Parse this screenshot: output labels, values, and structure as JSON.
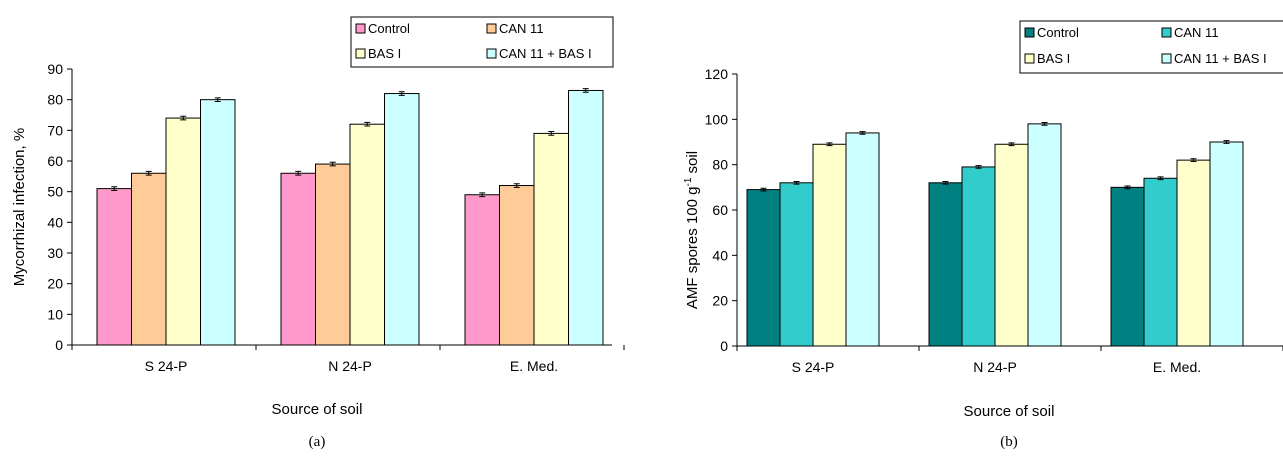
{
  "chart_data": [
    {
      "type": "bar",
      "title": "",
      "caption": "(a)",
      "xlabel": "Source of soil",
      "ylabel": "Mycorrhizal infection, %",
      "ylim": [
        0,
        90
      ],
      "yticks": [
        0,
        10,
        20,
        30,
        40,
        50,
        60,
        70,
        80,
        90
      ],
      "categories": [
        "S 24-P",
        "N 24-P",
        "E. Med."
      ],
      "error_bars": true,
      "legend_position": "top-right",
      "series": [
        {
          "name": "Control",
          "color": "#ff99cc",
          "values": [
            51,
            56,
            49
          ]
        },
        {
          "name": "CAN 11",
          "color": "#ffcc99",
          "values": [
            56,
            59,
            52
          ]
        },
        {
          "name": "BAS I",
          "color": "#ffffcc",
          "values": [
            74,
            72,
            69
          ]
        },
        {
          "name": "CAN 11 + BAS I",
          "color": "#ccffff",
          "values": [
            80,
            82,
            83
          ]
        }
      ]
    },
    {
      "type": "bar",
      "title": "",
      "caption": "(b)",
      "xlabel": "Source of soil",
      "ylabel": "AMF spores 100 g",
      "ylabel_sup": "-1",
      "ylabel_suffix": " soil",
      "ylim": [
        0,
        120
      ],
      "yticks": [
        0,
        20,
        40,
        60,
        80,
        100,
        120
      ],
      "categories": [
        "S 24-P",
        "N 24-P",
        "E. Med."
      ],
      "error_bars": true,
      "legend_position": "top-right",
      "series": [
        {
          "name": "Control",
          "color": "#008080",
          "values": [
            69,
            72,
            70
          ]
        },
        {
          "name": "CAN 11",
          "color": "#33cccc",
          "values": [
            72,
            79,
            74
          ]
        },
        {
          "name": "BAS I",
          "color": "#ffffcc",
          "values": [
            89,
            89,
            82
          ]
        },
        {
          "name": "CAN 11 + BAS I",
          "color": "#ccffff",
          "values": [
            94,
            98,
            90
          ]
        }
      ]
    }
  ]
}
